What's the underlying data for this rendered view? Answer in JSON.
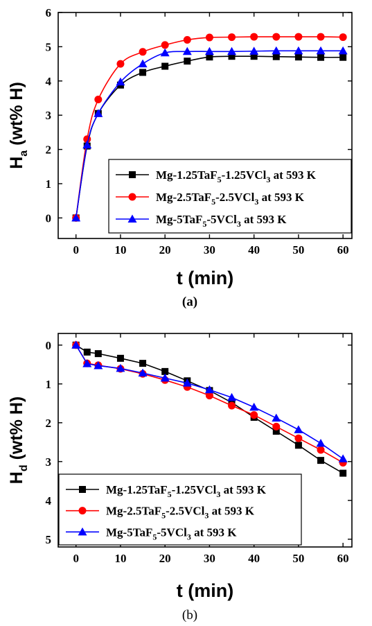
{
  "chart_data": [
    {
      "type": "line",
      "panel_label": "(a)",
      "xlabel": "t (min)",
      "ylabel_main": "H",
      "ylabel_sub": "a",
      "ylabel_rest": " (wt% H)",
      "xlim": [
        -4,
        62
      ],
      "ylim": [
        -0.6,
        6
      ],
      "y_inverted": false,
      "xticks": [
        0,
        10,
        20,
        30,
        40,
        50,
        60
      ],
      "yticks": [
        0,
        1,
        2,
        3,
        4,
        5,
        6
      ],
      "legend_position": "bottom-right",
      "x": [
        0,
        2.5,
        5,
        10,
        15,
        20,
        25,
        30,
        35,
        40,
        45,
        50,
        55,
        60
      ],
      "series": [
        {
          "name": "Mg-1.25TaF5-1.25VCl3 at 593 K",
          "name_parts": [
            "Mg-1.25TaF",
            "5",
            "-1.25VCl",
            "3",
            " at 593 K"
          ],
          "color": "#000000",
          "marker": "square",
          "values": [
            0,
            2.1,
            3.05,
            3.88,
            4.25,
            4.43,
            4.58,
            4.7,
            4.72,
            4.72,
            4.71,
            4.7,
            4.69,
            4.69
          ]
        },
        {
          "name": "Mg-2.5TaF5-2.5VCl3 at 593 K",
          "name_parts": [
            "Mg-2.5TaF",
            "5",
            "-2.5VCl",
            "3",
            " at 593 K"
          ],
          "color": "#ff0000",
          "marker": "circle",
          "values": [
            0,
            2.3,
            3.46,
            4.5,
            4.85,
            5.05,
            5.2,
            5.27,
            5.28,
            5.29,
            5.29,
            5.29,
            5.29,
            5.28
          ]
        },
        {
          "name": "Mg-5TaF5-5VCl3 at 593 K",
          "name_parts": [
            "Mg-5TaF",
            "5",
            "-5VCl",
            "3",
            " at 593 K"
          ],
          "color": "#0000ff",
          "marker": "triangle",
          "values": [
            0,
            2.13,
            3.05,
            3.97,
            4.5,
            4.82,
            4.86,
            4.86,
            4.86,
            4.87,
            4.88,
            4.88,
            4.88,
            4.88
          ]
        }
      ]
    },
    {
      "type": "line",
      "panel_label": "(b)",
      "xlabel": "t (min)",
      "ylabel_main": "H",
      "ylabel_sub": "d",
      "ylabel_rest": " (wt% H)",
      "xlim": [
        -4,
        62
      ],
      "ylim": [
        -0.3,
        5.2
      ],
      "y_inverted": true,
      "xticks": [
        0,
        10,
        20,
        30,
        40,
        50,
        60
      ],
      "yticks": [
        0,
        1,
        2,
        3,
        4,
        5
      ],
      "legend_position": "bottom-left",
      "x": [
        0,
        2.5,
        5,
        10,
        15,
        20,
        25,
        30,
        35,
        40,
        45,
        50,
        55,
        60
      ],
      "series": [
        {
          "name": "Mg-1.25TaF5-1.25VCl3 at 593 K",
          "name_parts": [
            "Mg-1.25TaF",
            "5",
            "-1.25VCl",
            "3",
            " at 593 K"
          ],
          "color": "#000000",
          "marker": "square",
          "values": [
            0,
            0.18,
            0.22,
            0.34,
            0.47,
            0.68,
            0.92,
            1.17,
            1.48,
            1.86,
            2.22,
            2.58,
            2.97,
            3.3
          ]
        },
        {
          "name": "Mg-2.5TaF5-2.5VCl3 at 593 K",
          "name_parts": [
            "Mg-2.5TaF",
            "5",
            "-2.5VCl",
            "3",
            " at 593 K"
          ],
          "color": "#ff0000",
          "marker": "circle",
          "values": [
            0,
            0.47,
            0.52,
            0.61,
            0.74,
            0.9,
            1.08,
            1.3,
            1.56,
            1.8,
            2.1,
            2.4,
            2.7,
            3.03
          ]
        },
        {
          "name": "Mg-5TaF5-5VCl3 at 593 K",
          "name_parts": [
            "Mg-5TaF",
            "5",
            "-5VCl",
            "3",
            " at 593 K"
          ],
          "color": "#0000ff",
          "marker": "triangle",
          "values": [
            0,
            0.48,
            0.53,
            0.6,
            0.72,
            0.85,
            0.98,
            1.15,
            1.35,
            1.6,
            1.88,
            2.18,
            2.53,
            2.93
          ]
        }
      ]
    }
  ]
}
